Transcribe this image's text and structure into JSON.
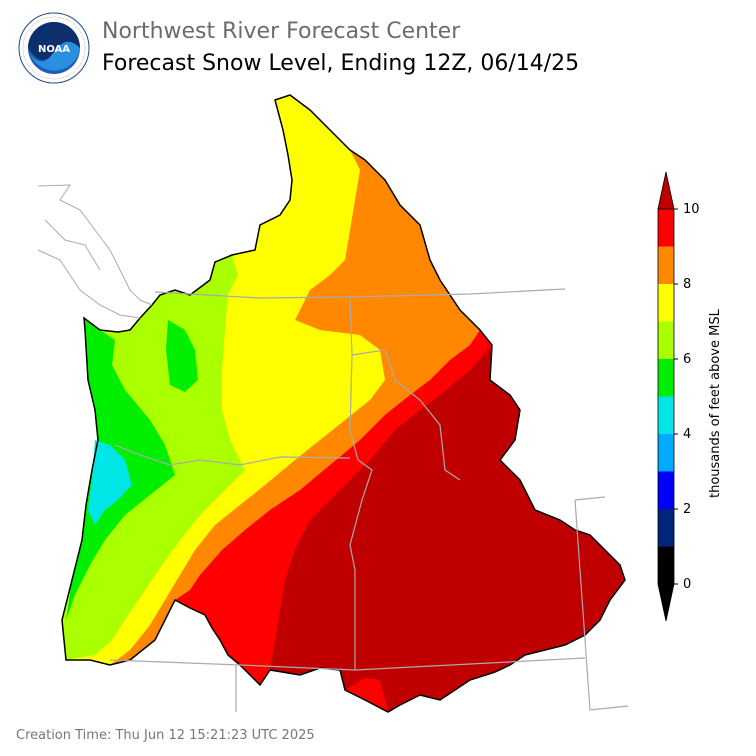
{
  "header": {
    "agency": "Northwest River Forecast Center",
    "product": "Forecast Snow Level, Ending 12Z, 06/14/25"
  },
  "logo": {
    "text": "NOAA",
    "ring_text": "NATIONAL OCEANIC AND ATMOSPHERIC ADMINISTRATION · U.S. DEPARTMENT OF COMMERCE"
  },
  "legend": {
    "label": "thousands of feet above MSL",
    "ticks": [
      "0",
      "2",
      "4",
      "6",
      "8",
      "10"
    ],
    "levels": [
      {
        "range": [
          0,
          1
        ],
        "color": "#000000"
      },
      {
        "range": [
          1,
          2
        ],
        "color": "#00257a"
      },
      {
        "range": [
          2,
          3
        ],
        "color": "#0000ff"
      },
      {
        "range": [
          3,
          4
        ],
        "color": "#00aaff"
      },
      {
        "range": [
          4,
          5
        ],
        "color": "#00e5e5"
      },
      {
        "range": [
          5,
          6
        ],
        "color": "#00ee00"
      },
      {
        "range": [
          6,
          7
        ],
        "color": "#aaff00"
      },
      {
        "range": [
          7,
          8
        ],
        "color": "#ffff00"
      },
      {
        "range": [
          8,
          9
        ],
        "color": "#ff8800"
      },
      {
        "range": [
          9,
          10
        ],
        "color": "#ff0000"
      },
      {
        "range": [
          10,
          11
        ],
        "color": "#c00000"
      }
    ]
  },
  "footer": {
    "creation_time": "Creation Time: Thu Jun 12 15:21:23 UTC 2025"
  }
}
